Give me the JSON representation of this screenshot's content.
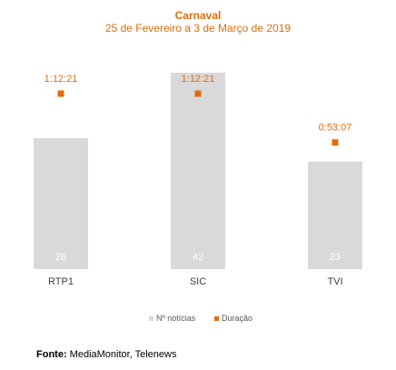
{
  "chart_data": {
    "type": "bar",
    "title": "Carnaval",
    "subtitle": "25 de Fevereiro a 3 de Março de 2019",
    "categories": [
      "RTP1",
      "SIC",
      "TVI"
    ],
    "series": [
      {
        "name": "Nº notícias",
        "type": "bar",
        "values": [
          28,
          42,
          23
        ],
        "color": "#d9d9d9",
        "labels": [
          "28",
          "42",
          "23"
        ]
      },
      {
        "name": "Duração",
        "type": "marker",
        "values_seconds": [
          4341,
          4341,
          3187
        ],
        "color": "#e46c0a",
        "labels": [
          "1:12:21",
          "1:12:21",
          "0:53:07"
        ]
      }
    ],
    "legend": {
      "position": "bottom",
      "entries": [
        "Nº notícias",
        "Duração"
      ]
    },
    "grid": false
  },
  "source": {
    "label": "Fonte:",
    "text": " MediaMonitor, Telenews"
  }
}
